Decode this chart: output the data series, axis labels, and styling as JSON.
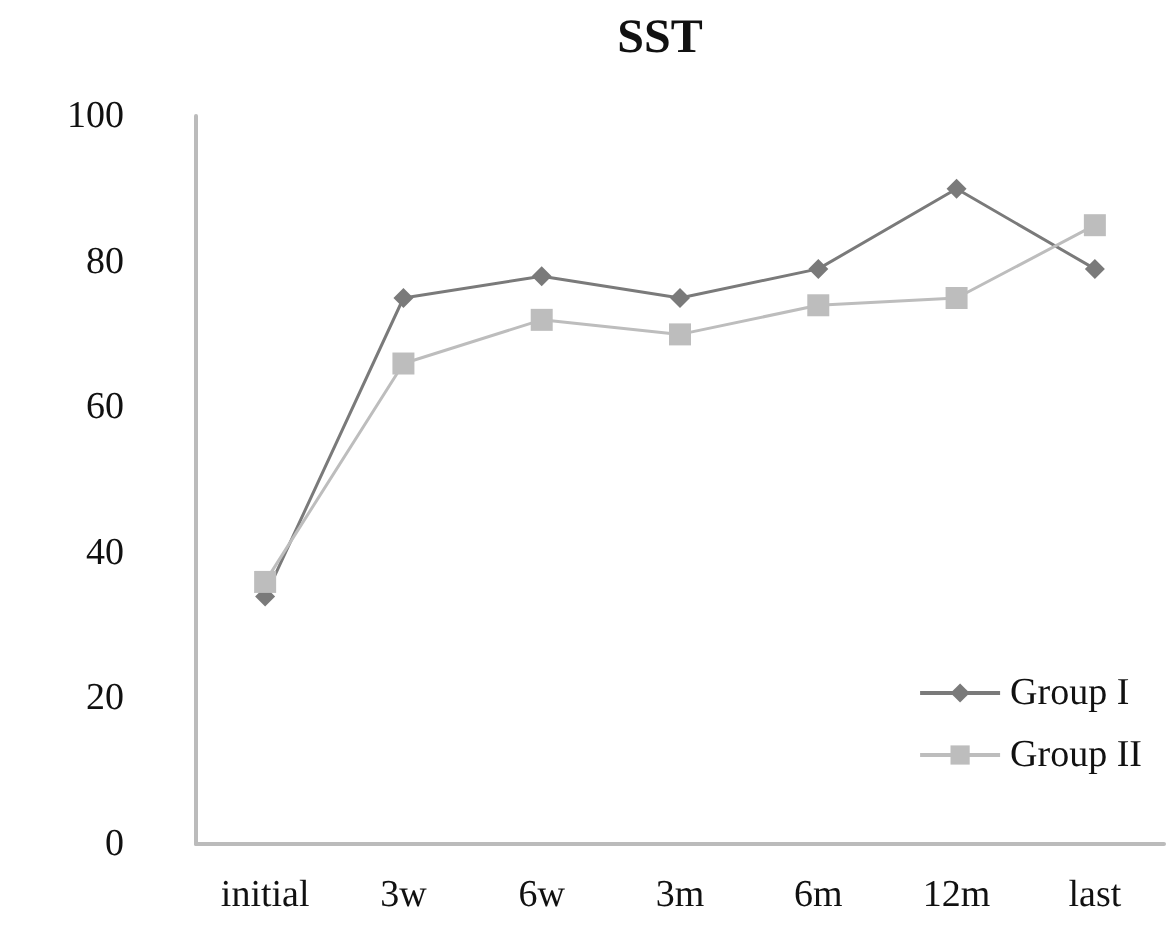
{
  "chart_data": {
    "type": "line",
    "title": "SST",
    "categories": [
      "initial",
      "3w",
      "6w",
      "3m",
      "6m",
      "12m",
      "last"
    ],
    "series": [
      {
        "name": "Group I",
        "color": "#7a7a7a",
        "marker": "diamond",
        "values": [
          34,
          75,
          78,
          75,
          79,
          90,
          79
        ]
      },
      {
        "name": "Group II",
        "color": "#bdbdbd",
        "marker": "square",
        "values": [
          36,
          66,
          72,
          70,
          74,
          75,
          85
        ]
      }
    ],
    "ylim": [
      0,
      100
    ],
    "yticks": [
      0,
      20,
      40,
      60,
      80,
      100
    ],
    "grid": false,
    "legend": "bottom right"
  }
}
